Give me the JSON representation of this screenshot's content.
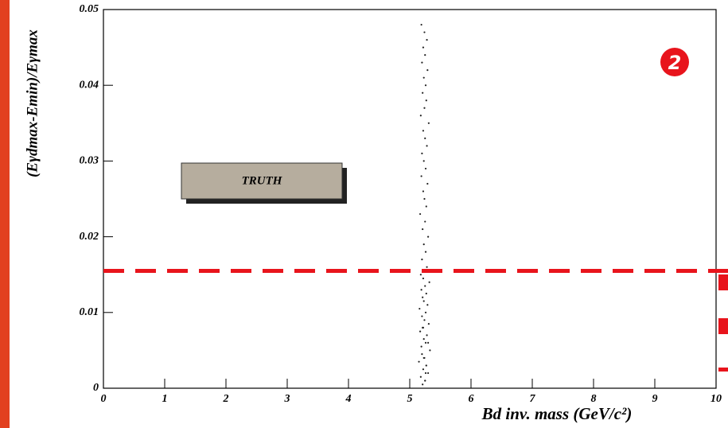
{
  "chart_data": {
    "type": "scatter",
    "xlabel": "Bd inv. mass (GeV/c²)",
    "ylabel": "(Eγdmax-Emin)/Eγmax",
    "annotation": "TRUTH",
    "badge": "2",
    "threshold": 0.0155,
    "threshold_color": "#e8141c",
    "color": "#222222",
    "xlim": [
      0,
      10
    ],
    "xticks": [
      0,
      1,
      2,
      3,
      4,
      5,
      6,
      7,
      8,
      9,
      10
    ],
    "ylim": [
      0,
      0.05
    ],
    "yticks": [
      0,
      0.01,
      0.02,
      0.03,
      0.04,
      0.05
    ],
    "x": [
      5.21,
      5.25,
      5.18,
      5.3,
      5.22,
      5.27,
      5.15,
      5.24,
      5.2,
      5.33,
      5.19,
      5.26,
      5.23,
      5.28,
      5.17,
      5.22,
      5.31,
      5.24,
      5.2,
      5.26,
      5.16,
      5.29,
      5.23,
      5.21,
      5.27,
      5.19,
      5.25,
      5.32,
      5.22,
      5.18,
      5.24,
      5.28,
      5.2,
      5.26,
      5.23,
      5.3,
      5.21,
      5.25,
      5.17,
      5.27,
      5.24,
      5.22,
      5.29,
      5.19,
      5.26,
      5.23,
      5.2,
      5.28,
      5.25,
      5.22,
      5.31,
      5.18,
      5.24,
      5.27,
      5.21,
      5.26,
      5.23,
      5.29,
      5.2,
      5.25,
      5.22,
      5.28,
      5.24,
      5.19,
      5.26,
      5.23,
      5.3,
      5.21,
      5.27,
      5.25
    ],
    "y": [
      0.0005,
      0.001,
      0.0015,
      0.002,
      0.0025,
      0.003,
      0.0035,
      0.004,
      0.0045,
      0.005,
      0.0055,
      0.006,
      0.0065,
      0.007,
      0.0075,
      0.008,
      0.0085,
      0.009,
      0.0095,
      0.01,
      0.0105,
      0.011,
      0.0115,
      0.012,
      0.0125,
      0.013,
      0.0135,
      0.014,
      0.0145,
      0.015,
      0.0155,
      0.016,
      0.017,
      0.018,
      0.019,
      0.02,
      0.021,
      0.022,
      0.023,
      0.024,
      0.025,
      0.026,
      0.027,
      0.028,
      0.029,
      0.03,
      0.031,
      0.032,
      0.033,
      0.034,
      0.035,
      0.036,
      0.037,
      0.038,
      0.039,
      0.04,
      0.041,
      0.042,
      0.043,
      0.044,
      0.045,
      0.046,
      0.047,
      0.048,
      0.002,
      0.004,
      0.006,
      0.008,
      0.003,
      0.001
    ]
  }
}
